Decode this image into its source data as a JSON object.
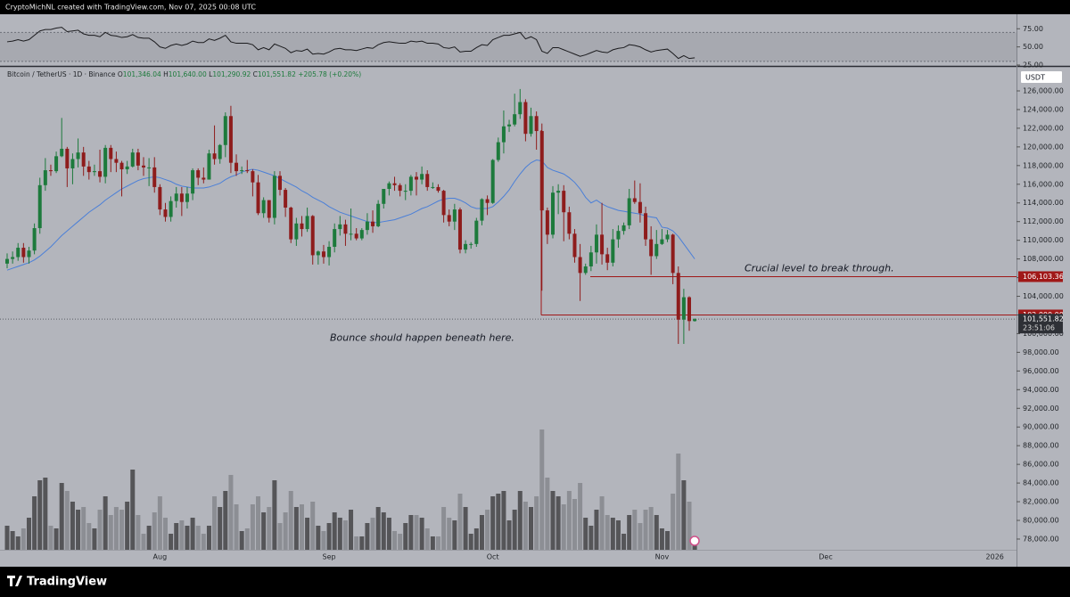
{
  "header": {
    "credit": "CryptoMichNL created with TradingView.com, Nov 07, 2025 00:08 UTC"
  },
  "footer": {
    "brand": "TradingView"
  },
  "chart_data": {
    "type": "candlestick",
    "symbol": "Bitcoin / TetherUS · 1D · Binance",
    "ohlc": [
      {
        "key": "O",
        "text": "101,346.04"
      },
      {
        "key": "H",
        "text": "101,640.00"
      },
      {
        "key": "L",
        "text": "101,290.92"
      },
      {
        "key": "C",
        "text": "101,551.82"
      }
    ],
    "change": "+205.78 (+0.20%)",
    "currency": "USDT",
    "colors": {
      "up": "#1d7a3c",
      "down": "#8e1c1c",
      "volume_up": "#555558",
      "volume_down": "#8c8e94"
    },
    "categories": [
      null,
      null,
      null,
      null,
      null,
      null,
      null,
      null,
      null,
      null,
      null,
      null,
      null,
      null,
      null,
      null,
      null,
      null,
      null,
      null,
      null,
      null,
      null,
      null,
      null,
      null,
      null,
      null,
      "Aug",
      null,
      null,
      null,
      null,
      null,
      null,
      null,
      null,
      null,
      null,
      null,
      null,
      null,
      null,
      null,
      null,
      null,
      null,
      null,
      null,
      null,
      null,
      null,
      null,
      null,
      null,
      null,
      null,
      null,
      null,
      "Sep",
      null,
      null,
      null,
      null,
      null,
      null,
      null,
      null,
      null,
      null,
      null,
      null,
      null,
      null,
      null,
      null,
      null,
      null,
      null,
      null,
      null,
      null,
      null,
      null,
      null,
      null,
      null,
      null,
      null,
      "Oct",
      null,
      null,
      null,
      null,
      null,
      null,
      null,
      null,
      null,
      null,
      null,
      null,
      null,
      null,
      null,
      null,
      null,
      null,
      null,
      null,
      null,
      null,
      null,
      null,
      null,
      null,
      null,
      null,
      null,
      null,
      "Nov",
      null,
      null,
      null,
      null,
      null,
      null
    ],
    "xticks_beyond": [
      "Dec",
      "2026"
    ],
    "open": [
      107500,
      108000,
      108200,
      109200,
      108200,
      108900,
      111300,
      115900,
      117500,
      117400,
      119000,
      119800,
      117700,
      118700,
      119400,
      117900,
      117300,
      117400,
      116800,
      119900,
      118700,
      118300,
      117600,
      117900,
      119400,
      118000,
      117800,
      117800,
      115700,
      113300,
      112500,
      114200,
      115000,
      114100,
      115000,
      117500,
      116700,
      116500,
      119300,
      118700,
      120200,
      123300,
      118300,
      117400,
      117500,
      117400,
      116200,
      112900,
      114300,
      112400,
      116900,
      115400,
      113500,
      110100,
      111800,
      111200,
      112600,
      108400,
      108800,
      108200,
      109300,
      111200,
      111700,
      110700,
      110700,
      110200,
      111100,
      112000,
      111500,
      113900,
      115500,
      116100,
      115900,
      115300,
      115300,
      116800,
      116500,
      117100,
      115700,
      115700,
      115300,
      112700,
      112000,
      113300,
      109000,
      109600,
      109600,
      112100,
      114400,
      114000,
      118600,
      120500,
      122200,
      122400,
      123500,
      124800,
      121400,
      123300,
      121700,
      113200,
      110600,
      115100,
      115300,
      113000,
      110700,
      108200,
      106500,
      107200,
      108700,
      110600,
      108500,
      107600,
      110100,
      111000,
      111600,
      114500,
      114100,
      112900,
      110100,
      108300,
      109600,
      110100,
      110600,
      106500,
      101500,
      103900,
      101346.04
    ],
    "high": [
      108600,
      108800,
      109700,
      109700,
      109300,
      111800,
      116700,
      118800,
      118100,
      119500,
      123100,
      120000,
      119300,
      120900,
      120000,
      118500,
      118100,
      119700,
      120200,
      120200,
      119500,
      118500,
      118500,
      119800,
      119800,
      118900,
      118800,
      118900,
      116000,
      114000,
      114700,
      115700,
      115700,
      115700,
      117700,
      117700,
      117800,
      119700,
      122300,
      120300,
      123700,
      124400,
      119200,
      117900,
      118600,
      117600,
      117000,
      114600,
      114300,
      117400,
      117400,
      115600,
      113600,
      112400,
      112600,
      113500,
      112700,
      108900,
      109500,
      109900,
      111800,
      112600,
      112200,
      113400,
      111300,
      111300,
      112900,
      113200,
      114300,
      115500,
      116300,
      116800,
      116100,
      116000,
      117000,
      117300,
      117900,
      117500,
      116200,
      116000,
      115400,
      113300,
      113900,
      113500,
      110000,
      109800,
      112400,
      114500,
      114800,
      118700,
      121000,
      123900,
      122900,
      125700,
      126200,
      125100,
      124200,
      123800,
      122500,
      113500,
      115800,
      116000,
      115900,
      113600,
      111200,
      109600,
      107500,
      109400,
      111700,
      114000,
      109200,
      111200,
      111600,
      111900,
      115500,
      116400,
      116100,
      113600,
      111500,
      111100,
      111200,
      111100,
      110700,
      107200,
      104800,
      104000,
      101640
    ],
    "low": [
      107000,
      107500,
      107800,
      107600,
      107500,
      108500,
      110700,
      115300,
      116900,
      117200,
      118900,
      115700,
      116000,
      117800,
      116900,
      116500,
      116900,
      116200,
      116100,
      117300,
      117300,
      114700,
      117100,
      117800,
      117500,
      116900,
      115800,
      115100,
      112700,
      112000,
      112000,
      113500,
      112600,
      113400,
      114300,
      115900,
      116100,
      116500,
      118100,
      118200,
      118900,
      117200,
      116900,
      117100,
      117200,
      114700,
      112700,
      112400,
      111900,
      111700,
      114800,
      112500,
      109700,
      109400,
      110400,
      110900,
      107400,
      107400,
      107500,
      107300,
      108700,
      110500,
      109400,
      110000,
      110000,
      110000,
      110600,
      110800,
      111400,
      113400,
      114800,
      115300,
      114700,
      114300,
      114800,
      114800,
      116000,
      115300,
      115500,
      115100,
      111900,
      111500,
      111100,
      108600,
      108600,
      109100,
      109300,
      111600,
      112700,
      113900,
      118400,
      119300,
      121600,
      122200,
      123000,
      120600,
      121100,
      119700,
      104600,
      109600,
      110200,
      112800,
      109900,
      110100,
      107600,
      103500,
      106300,
      106700,
      107500,
      107400,
      106800,
      107200,
      109200,
      110600,
      111200,
      113900,
      111900,
      109400,
      106300,
      108000,
      109500,
      109800,
      105300,
      98900,
      98900,
      100300,
      101290.92
    ],
    "close": [
      108000,
      108200,
      109200,
      108200,
      108900,
      111300,
      115900,
      117500,
      117400,
      119000,
      119800,
      117700,
      118700,
      119400,
      117900,
      117300,
      117400,
      116800,
      119900,
      118700,
      118300,
      117600,
      117900,
      119400,
      118000,
      117800,
      117800,
      115700,
      113300,
      112500,
      114200,
      115000,
      114100,
      115000,
      117500,
      116700,
      116500,
      119300,
      118700,
      120200,
      123300,
      118300,
      117400,
      117500,
      117400,
      116200,
      112900,
      114300,
      112400,
      116900,
      115400,
      113500,
      110100,
      111800,
      111200,
      112600,
      108400,
      108800,
      108200,
      109300,
      111200,
      111700,
      110700,
      110700,
      110200,
      111100,
      112000,
      111500,
      113900,
      115500,
      116100,
      115900,
      115300,
      115300,
      116800,
      116500,
      117100,
      115700,
      115700,
      115300,
      112700,
      112000,
      113300,
      109000,
      109600,
      109600,
      112100,
      114400,
      114000,
      118600,
      120500,
      122200,
      122400,
      123500,
      124800,
      121400,
      123300,
      121700,
      113200,
      110600,
      115100,
      115300,
      113000,
      110700,
      108200,
      106500,
      107200,
      108700,
      110600,
      108500,
      107600,
      110100,
      111000,
      111600,
      114500,
      114100,
      112900,
      110100,
      108300,
      109600,
      110100,
      110600,
      106500,
      101500,
      103900,
      101346.04,
      101551.82
    ],
    "ylim": [
      75230,
      128480
    ],
    "yticks": [
      {
        "value": 78000,
        "label": "78,000.00"
      },
      {
        "value": 80000,
        "label": "80,000.00"
      },
      {
        "value": 82000,
        "label": "82,000.00"
      },
      {
        "value": 84000,
        "label": "84,000.00"
      },
      {
        "value": 86000,
        "label": "86,000.00"
      },
      {
        "value": 88000,
        "label": "88,000.00"
      },
      {
        "value": 90000,
        "label": "90,000.00"
      },
      {
        "value": 92000,
        "label": "92,000.00"
      },
      {
        "value": 94000,
        "label": "94,000.00"
      },
      {
        "value": 96000,
        "label": "96,000.00"
      },
      {
        "value": 98000,
        "label": "98,000.00"
      },
      {
        "value": 100000,
        "label": "100,000.00"
      },
      {
        "value": 102000,
        "label": "102,000.00"
      },
      {
        "value": 104000,
        "label": "104,000.00"
      },
      {
        "value": 106000,
        "label": "106,000.00"
      },
      {
        "value": 108000,
        "label": "108,000.00"
      },
      {
        "value": 110000,
        "label": "110,000.00"
      },
      {
        "value": 112000,
        "label": "112,000.00"
      },
      {
        "value": 114000,
        "label": "114,000.00"
      },
      {
        "value": 116000,
        "label": "116,000.00"
      },
      {
        "value": 118000,
        "label": "118,000.00"
      },
      {
        "value": 120000,
        "label": "120,000.00"
      },
      {
        "value": 122000,
        "label": "122,000.00"
      },
      {
        "value": 124000,
        "label": "124,000.00"
      },
      {
        "value": 126000,
        "label": "126,000.00"
      }
    ],
    "ma": {
      "color": "#4a7fd8",
      "values": [
        106800,
        107000,
        107200,
        107400,
        107600,
        107900,
        108300,
        108800,
        109300,
        109900,
        110500,
        111000,
        111500,
        112000,
        112500,
        113000,
        113400,
        113800,
        114300,
        114700,
        115100,
        115500,
        115800,
        116100,
        116400,
        116600,
        116700,
        116800,
        116700,
        116500,
        116300,
        116000,
        115800,
        115700,
        115600,
        115600,
        115600,
        115700,
        115900,
        116100,
        116500,
        116800,
        117000,
        117300,
        117500,
        117600,
        117500,
        117300,
        117100,
        116900,
        116600,
        116300,
        116000,
        115700,
        115300,
        115000,
        114600,
        114300,
        114000,
        113600,
        113300,
        113000,
        112800,
        112600,
        112400,
        112200,
        112000,
        111900,
        111900,
        112000,
        112100,
        112200,
        112400,
        112600,
        112800,
        113100,
        113400,
        113600,
        113900,
        114200,
        114400,
        114500,
        114500,
        114300,
        114000,
        113600,
        113400,
        113400,
        113400,
        113600,
        114100,
        114700,
        115400,
        116300,
        117100,
        117800,
        118300,
        118600,
        118500,
        117800,
        117500,
        117300,
        117100,
        116700,
        116200,
        115500,
        114600,
        114000,
        114300,
        113900,
        113600,
        113400,
        113200,
        113100,
        113000,
        112900,
        112800,
        112600,
        112500,
        112400,
        111400,
        111300,
        111000,
        110400,
        109600,
        108800,
        108000
      ]
    },
    "volume": {
      "ylim": [
        0,
        50000
      ],
      "values": [
        9000,
        7000,
        5000,
        8000,
        12000,
        20000,
        26000,
        27000,
        9000,
        8000,
        25000,
        22000,
        18000,
        15000,
        16000,
        10000,
        8000,
        15000,
        20000,
        13000,
        16000,
        15000,
        18000,
        30000,
        13000,
        6000,
        9000,
        14000,
        20000,
        12000,
        6000,
        10000,
        11000,
        9000,
        12000,
        9000,
        6000,
        9000,
        20000,
        16000,
        22000,
        28000,
        17000,
        7000,
        8000,
        17000,
        20000,
        14000,
        16000,
        26000,
        10000,
        14000,
        22000,
        16000,
        17000,
        12000,
        18000,
        9000,
        7000,
        10000,
        14000,
        12000,
        11000,
        15000,
        5000,
        5000,
        10000,
        12000,
        16000,
        14000,
        12000,
        7000,
        6000,
        10000,
        13000,
        13000,
        12000,
        8000,
        5000,
        5000,
        16000,
        12000,
        11000,
        21000,
        16000,
        6000,
        8000,
        13000,
        15000,
        20000,
        21000,
        22000,
        11000,
        15000,
        22000,
        18000,
        16000,
        20000,
        45000,
        27000,
        22000,
        20000,
        17000,
        22000,
        19000,
        25000,
        12000,
        9000,
        15000,
        20000,
        13000,
        12000,
        11000,
        6000,
        13000,
        15000,
        10000,
        15000,
        16000,
        13000,
        8000,
        7000,
        21000,
        36000,
        26000,
        18000,
        2000
      ]
    },
    "rsi": {
      "color": "#1b1b1e",
      "band": [
        30,
        70
      ],
      "ylim": [
        23.75,
        95
      ],
      "yticks": [
        {
          "value": 75,
          "label": "75.00"
        },
        {
          "value": 50,
          "label": "50.00"
        },
        {
          "value": 25,
          "label": "25.00"
        }
      ],
      "values": [
        57,
        58,
        60,
        58,
        60,
        66,
        72,
        74,
        74,
        76,
        77,
        71,
        72,
        73,
        68,
        66,
        66,
        64,
        70,
        66,
        65,
        63,
        64,
        67,
        63,
        62,
        62,
        57,
        50,
        48,
        52,
        54,
        52,
        54,
        58,
        56,
        56,
        61,
        59,
        62,
        66,
        57,
        55,
        55,
        55,
        53,
        46,
        49,
        46,
        54,
        51,
        48,
        42,
        45,
        44,
        47,
        40,
        41,
        40,
        43,
        47,
        48,
        46,
        46,
        45,
        47,
        49,
        48,
        53,
        56,
        57,
        56,
        55,
        55,
        58,
        57,
        58,
        55,
        55,
        54,
        49,
        48,
        50,
        43,
        44,
        44,
        49,
        53,
        52,
        60,
        63,
        66,
        66,
        68,
        70,
        61,
        64,
        60,
        44,
        41,
        49,
        49,
        46,
        43,
        40,
        37,
        39,
        42,
        45,
        43,
        42,
        46,
        48,
        49,
        53,
        52,
        50,
        46,
        43,
        45,
        46,
        47,
        41,
        34,
        38,
        34,
        35
      ]
    },
    "annotations": [
      {
        "text": "Crucial level to break through.",
        "level": {
          "value": 106103.36,
          "label": "106,103.36"
        },
        "color": "#a01818"
      },
      {
        "text": "Bounce should happen beneath here.",
        "level": {
          "value": 102000,
          "label": "102,000.00"
        },
        "color": "#a01818"
      }
    ],
    "last_price": {
      "value": 101551.82,
      "label": "101,551.82"
    },
    "countdown": "23:51:06"
  }
}
